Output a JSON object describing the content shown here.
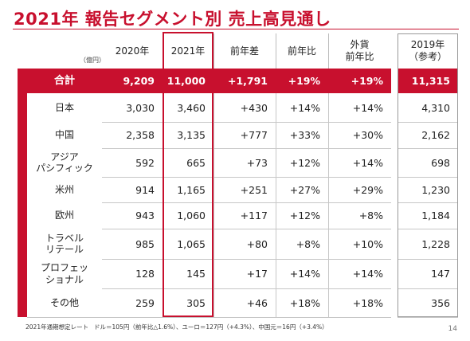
{
  "title": "2021年 報告セグメント別 売上高見通し",
  "unit_label": "（億円）",
  "headers": [
    "2020年",
    "2021年",
    "前年差",
    "前年比",
    "外貨\n前年比",
    "2019年\n（参考）"
  ],
  "rows": [
    {
      "label": "合計",
      "values": [
        "9,209",
        "11,000",
        "+1,791",
        "+19%",
        "+19%",
        "11,315"
      ]
    },
    {
      "label": "日本",
      "values": [
        "3,030",
        "3,460",
        "+430",
        "+14%",
        "+14%",
        "4,310"
      ]
    },
    {
      "label": "中国",
      "values": [
        "2,358",
        "3,135",
        "+777",
        "+33%",
        "+30%",
        "2,162"
      ]
    },
    {
      "label": "アジア\nパシフィック",
      "values": [
        "592",
        "665",
        "+73",
        "+12%",
        "+14%",
        "698"
      ]
    },
    {
      "label": "米州",
      "values": [
        "914",
        "1,165",
        "+251",
        "+27%",
        "+29%",
        "1,230"
      ]
    },
    {
      "label": "欧州",
      "values": [
        "943",
        "1,060",
        "+117",
        "+12%",
        "+8%",
        "1,184"
      ]
    },
    {
      "label": "トラベル\nリテール",
      "values": [
        "985",
        "1,065",
        "+80",
        "+8%",
        "+10%",
        "1,228"
      ]
    },
    {
      "label": "プロフェッ\nショナル",
      "values": [
        "128",
        "145",
        "+17",
        "+14%",
        "+14%",
        "147"
      ]
    },
    {
      "label": "その他",
      "values": [
        "259",
        "305",
        "+46",
        "+18%",
        "+18%",
        "356"
      ]
    }
  ],
  "footnote_label": "2021年通期想定レート",
  "footnote_text": "ドル＝105円（前年比△1.6%）、ユーロ＝127円（+4.3%）、中国元＝16円（+3.4%）",
  "page_number": "14",
  "colors": {
    "accent": "#c8102e"
  }
}
